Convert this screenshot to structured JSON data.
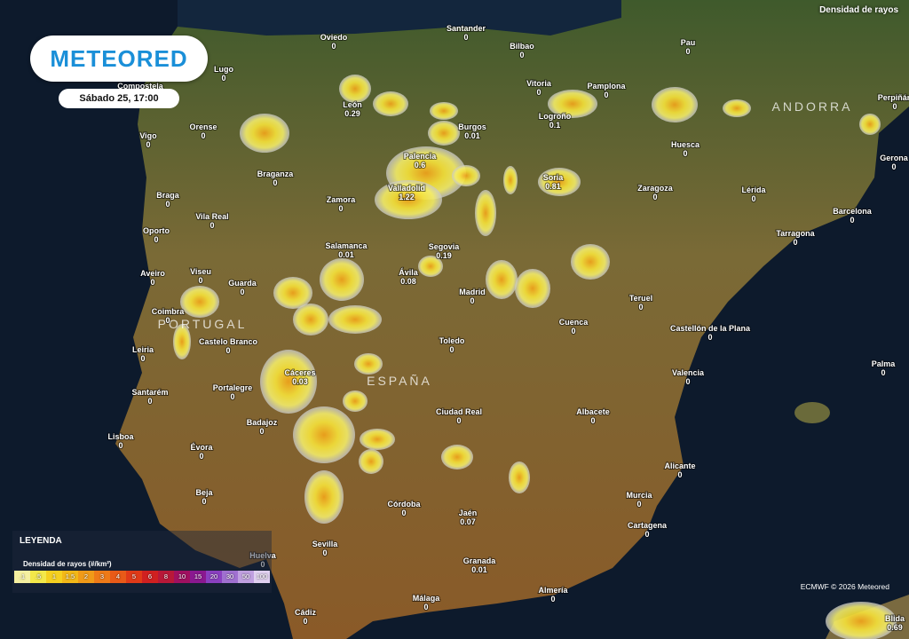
{
  "header": {
    "logo": "METEORED",
    "datetime": "Sábado 25, 17:00",
    "layer": "Densidad de rayos"
  },
  "regions": [
    "PORTUGAL",
    "ESPAÑA",
    "ANDORRA"
  ],
  "cities": [
    {
      "name": "Oviedo",
      "value": 0
    },
    {
      "name": "Santander",
      "value": 0
    },
    {
      "name": "Bilbao",
      "value": 0
    },
    {
      "name": "Pau",
      "value": 0
    },
    {
      "name": "Lugo",
      "value": 0
    },
    {
      "name": "Compostela",
      "value": 0
    },
    {
      "name": "Vitoria",
      "value": 0
    },
    {
      "name": "Pamplona",
      "value": 0
    },
    {
      "name": "León",
      "value": 0.29
    },
    {
      "name": "Burgos",
      "value": 0.01
    },
    {
      "name": "Logroño",
      "value": 0.1
    },
    {
      "name": "Perpiñán",
      "value": 0
    },
    {
      "name": "Vigo",
      "value": 0
    },
    {
      "name": "Orense",
      "value": 0
    },
    {
      "name": "Palencia",
      "value": 0.6
    },
    {
      "name": "Huesca",
      "value": 0
    },
    {
      "name": "Gerona",
      "value": 0
    },
    {
      "name": "Braganza",
      "value": 0
    },
    {
      "name": "Soria",
      "value": 0.81
    },
    {
      "name": "Valladolid",
      "value": 1.22
    },
    {
      "name": "Zaragoza",
      "value": 0
    },
    {
      "name": "Lérida",
      "value": 0
    },
    {
      "name": "Zamora",
      "value": 0
    },
    {
      "name": "Braga",
      "value": 0
    },
    {
      "name": "Vila Real",
      "value": 0
    },
    {
      "name": "Barcelona",
      "value": 0
    },
    {
      "name": "Oporto",
      "value": 0
    },
    {
      "name": "Segovia",
      "value": 0.19
    },
    {
      "name": "Salamanca",
      "value": 0.01
    },
    {
      "name": "Tarragona",
      "value": 0
    },
    {
      "name": "Aveiro",
      "value": 0
    },
    {
      "name": "Viseu",
      "value": 0
    },
    {
      "name": "Guarda",
      "value": 0
    },
    {
      "name": "Ávila",
      "value": 0.08
    },
    {
      "name": "Madrid",
      "value": 0
    },
    {
      "name": "Teruel",
      "value": 0
    },
    {
      "name": "Coimbra",
      "value": 0
    },
    {
      "name": "Cuenca",
      "value": 0
    },
    {
      "name": "Castelo Branco",
      "value": 0
    },
    {
      "name": "Castellón de la Plana",
      "value": 0
    },
    {
      "name": "Toledo",
      "value": 0
    },
    {
      "name": "Leiria",
      "value": 0
    },
    {
      "name": "Palma",
      "value": 0
    },
    {
      "name": "Cáceres",
      "value": 0.03
    },
    {
      "name": "Valencia",
      "value": 0
    },
    {
      "name": "Portalegre",
      "value": 0
    },
    {
      "name": "Santarém",
      "value": 0
    },
    {
      "name": "Ciudad Real",
      "value": 0
    },
    {
      "name": "Albacete",
      "value": 0
    },
    {
      "name": "Badajoz",
      "value": 0
    },
    {
      "name": "Lisboa",
      "value": 0
    },
    {
      "name": "Évora",
      "value": 0
    },
    {
      "name": "Alicante",
      "value": 0
    },
    {
      "name": "Beja",
      "value": 0
    },
    {
      "name": "Murcia",
      "value": 0
    },
    {
      "name": "Córdoba",
      "value": 0
    },
    {
      "name": "Jaén",
      "value": 0.07
    },
    {
      "name": "Cartagena",
      "value": 0
    },
    {
      "name": "Sevilla",
      "value": 0
    },
    {
      "name": "Huelva",
      "value": 0
    },
    {
      "name": "Granada",
      "value": 0.01
    },
    {
      "name": "Almería",
      "value": 0
    },
    {
      "name": "Málaga",
      "value": 0
    },
    {
      "name": "Cádiz",
      "value": 0
    },
    {
      "name": "Blida",
      "value": 0.69
    }
  ],
  "legend": {
    "title": "LEYENDA",
    "subtitle": "Densidad de rayos (#/km²)",
    "labels": [
      ".1",
      ".5",
      "1",
      "1.5",
      "2",
      "3",
      "4",
      "5",
      "6",
      "8",
      "10",
      "15",
      "20",
      "30",
      "50",
      "100"
    ]
  },
  "credit": "ECMWF © 2026 Meteored"
}
